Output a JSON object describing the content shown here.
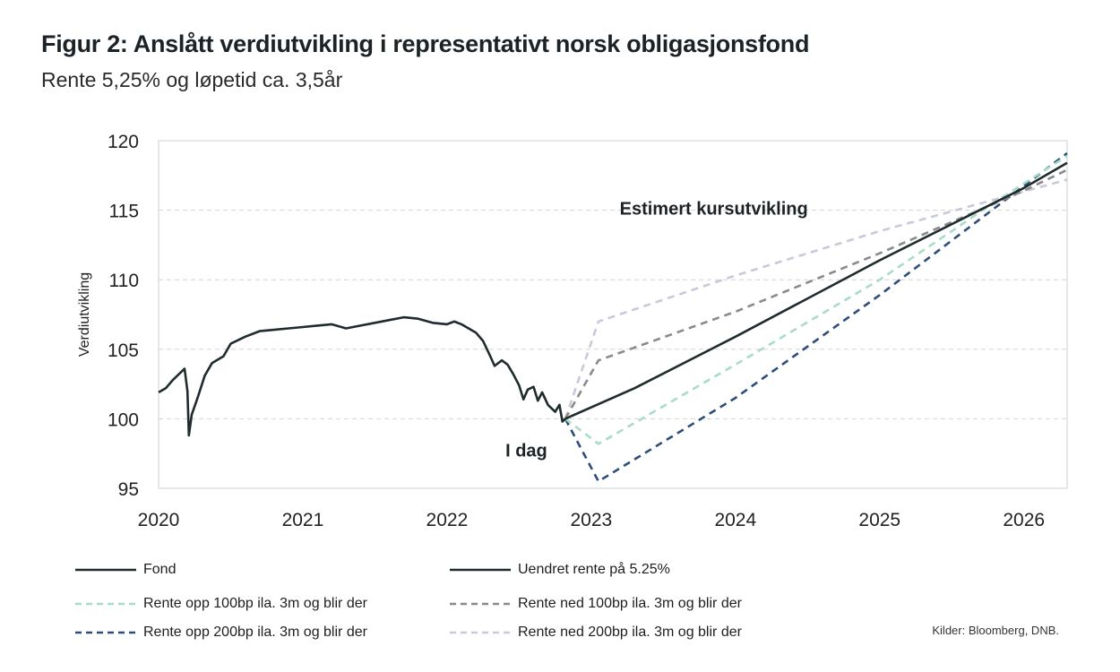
{
  "title": "Figur 2: Anslått verdiutvikling i representativt norsk obligasjonsfond",
  "subtitle": "Rente 5,25% og løpetid ca. 3,5år",
  "source": "Kilder: Bloomberg, DNB.",
  "chart_data": {
    "type": "line",
    "ylabel": "Verdiutvikling",
    "ylim": [
      95,
      120
    ],
    "yticks": [
      95,
      100,
      105,
      110,
      115,
      120
    ],
    "xlim": [
      2020.0,
      2026.3
    ],
    "xticks": [
      2020,
      2021,
      2022,
      2023,
      2024,
      2025,
      2026
    ],
    "grid": "horizontal dashed",
    "annotations": [
      {
        "text": "Estimert kursutvikling",
        "x": 2023.85,
        "y": 114.7
      },
      {
        "text": "I dag",
        "x": 2022.55,
        "y": 97.3
      }
    ],
    "series": [
      {
        "name": "Fond",
        "color": "#1f2b2d",
        "dash": "solid",
        "points": [
          [
            2020.0,
            101.9
          ],
          [
            2020.05,
            102.2
          ],
          [
            2020.1,
            102.8
          ],
          [
            2020.15,
            103.3
          ],
          [
            2020.18,
            103.6
          ],
          [
            2020.2,
            102.0
          ],
          [
            2020.21,
            98.8
          ],
          [
            2020.23,
            100.3
          ],
          [
            2020.27,
            101.5
          ],
          [
            2020.32,
            103.1
          ],
          [
            2020.37,
            104.0
          ],
          [
            2020.45,
            104.5
          ],
          [
            2020.5,
            105.4
          ],
          [
            2020.6,
            105.9
          ],
          [
            2020.7,
            106.3
          ],
          [
            2020.8,
            106.4
          ],
          [
            2020.9,
            106.5
          ],
          [
            2021.0,
            106.6
          ],
          [
            2021.1,
            106.7
          ],
          [
            2021.2,
            106.8
          ],
          [
            2021.3,
            106.5
          ],
          [
            2021.4,
            106.7
          ],
          [
            2021.5,
            106.9
          ],
          [
            2021.6,
            107.1
          ],
          [
            2021.7,
            107.3
          ],
          [
            2021.8,
            107.2
          ],
          [
            2021.9,
            106.9
          ],
          [
            2022.0,
            106.8
          ],
          [
            2022.05,
            107.0
          ],
          [
            2022.1,
            106.8
          ],
          [
            2022.2,
            106.2
          ],
          [
            2022.25,
            105.6
          ],
          [
            2022.3,
            104.5
          ],
          [
            2022.33,
            103.8
          ],
          [
            2022.38,
            104.2
          ],
          [
            2022.42,
            103.9
          ],
          [
            2022.46,
            103.2
          ],
          [
            2022.5,
            102.4
          ],
          [
            2022.53,
            101.4
          ],
          [
            2022.56,
            102.1
          ],
          [
            2022.6,
            102.3
          ],
          [
            2022.63,
            101.3
          ],
          [
            2022.66,
            101.9
          ],
          [
            2022.7,
            101.0
          ],
          [
            2022.75,
            100.5
          ],
          [
            2022.78,
            101.0
          ],
          [
            2022.8,
            99.8
          ],
          [
            2022.82,
            100.0
          ]
        ]
      },
      {
        "name": "Uendret rente på 5.25%",
        "color": "#1f2b2d",
        "dash": "solid",
        "points": [
          [
            2022.82,
            100.0
          ],
          [
            2023.3,
            102.2
          ],
          [
            2024.0,
            105.9
          ],
          [
            2025.0,
            111.4
          ],
          [
            2026.0,
            116.6
          ],
          [
            2026.3,
            118.4
          ]
        ]
      },
      {
        "name": "Rente opp 100bp ila. 3m og blir der",
        "color": "#a8dcc9",
        "dash": "dashed",
        "points": [
          [
            2022.82,
            100.0
          ],
          [
            2023.05,
            98.2
          ],
          [
            2024.0,
            103.9
          ],
          [
            2025.0,
            110.0
          ],
          [
            2025.8,
            115.6
          ],
          [
            2026.3,
            118.9
          ]
        ]
      },
      {
        "name": "Rente ned 100bp ila. 3m og blir der",
        "color": "#8a8a8a",
        "dash": "dashed",
        "points": [
          [
            2022.82,
            100.0
          ],
          [
            2023.05,
            104.2
          ],
          [
            2024.0,
            107.7
          ],
          [
            2025.0,
            111.9
          ],
          [
            2026.0,
            116.4
          ],
          [
            2026.3,
            117.9
          ]
        ]
      },
      {
        "name": "Rente opp 200bp ila. 3m og blir der",
        "color": "#2e4d7a",
        "dash": "dashed",
        "points": [
          [
            2022.82,
            100.0
          ],
          [
            2023.05,
            95.5
          ],
          [
            2024.0,
            101.5
          ],
          [
            2025.0,
            108.9
          ],
          [
            2026.3,
            119.1
          ]
        ]
      },
      {
        "name": "Rente ned 200bp ila. 3m og blir der",
        "color": "#c9c9da",
        "dash": "dashed",
        "points": [
          [
            2022.82,
            100.0
          ],
          [
            2023.05,
            107.0
          ],
          [
            2024.0,
            110.3
          ],
          [
            2025.0,
            113.5
          ],
          [
            2026.3,
            117.2
          ]
        ]
      }
    ]
  }
}
